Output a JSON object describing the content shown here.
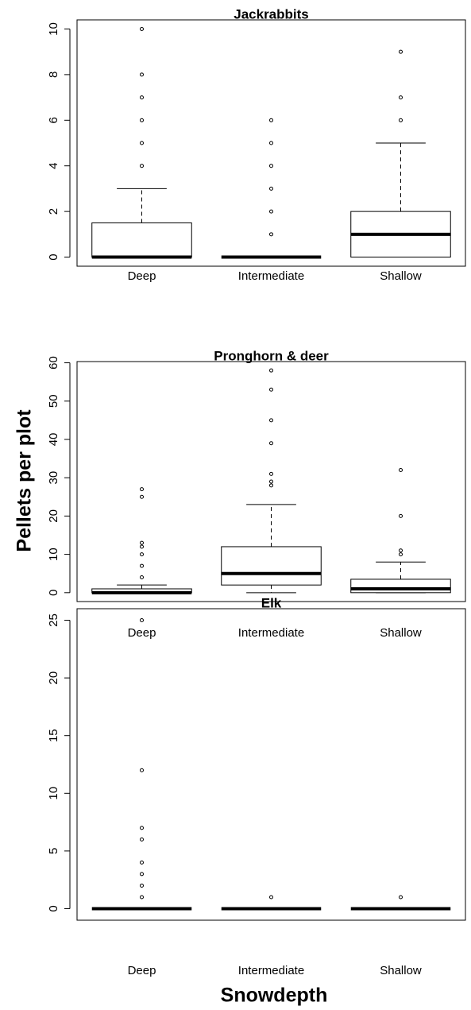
{
  "chart_data": [
    {
      "type": "box",
      "title": "Jackrabbits",
      "categories": [
        "Deep",
        "Intermediate",
        "Shallow"
      ],
      "boxes": [
        {
          "min": 0,
          "q1": 0,
          "median": 0,
          "q3": 1.5,
          "max": 3,
          "outliers": [
            4,
            5,
            6,
            7,
            8,
            10
          ]
        },
        {
          "min": 0,
          "q1": 0,
          "median": 0,
          "q3": 0,
          "max": 0,
          "outliers": [
            1,
            2,
            3,
            4,
            5,
            6
          ]
        },
        {
          "min": 0,
          "q1": 0,
          "median": 1,
          "q3": 2,
          "max": 5,
          "outliers": [
            6,
            7,
            9
          ]
        }
      ],
      "ylim": [
        -0.4,
        10.4
      ],
      "yticks": [
        0,
        2,
        4,
        6,
        8,
        10
      ]
    },
    {
      "type": "box",
      "title": "Pronghorn & deer",
      "ylabel": "Pellets per plot",
      "categories": [
        "Deep",
        "Intermediate",
        "Shallow"
      ],
      "boxes": [
        {
          "min": 0,
          "q1": 0,
          "median": 0,
          "q3": 1,
          "max": 2,
          "outliers": [
            4,
            7,
            10,
            12,
            13,
            25,
            27
          ]
        },
        {
          "min": 0,
          "q1": 2,
          "median": 5,
          "q3": 12,
          "max": 23,
          "outliers": [
            28,
            29,
            31,
            39,
            45,
            53,
            58
          ]
        },
        {
          "min": 0,
          "q1": 0,
          "median": 1,
          "q3": 3.5,
          "max": 8,
          "outliers": [
            10,
            11,
            20,
            32
          ]
        }
      ],
      "ylim": [
        -2.32,
        60.32
      ],
      "yticks": [
        0,
        10,
        20,
        30,
        40,
        50,
        60
      ]
    },
    {
      "type": "box",
      "title": "Elk",
      "xlabel": "Snowdepth",
      "categories": [
        "Deep",
        "Intermediate",
        "Shallow"
      ],
      "boxes": [
        {
          "min": 0,
          "q1": 0,
          "median": 0,
          "q3": 0,
          "max": 0,
          "outliers": [
            1,
            2,
            3,
            4,
            6,
            7,
            12,
            25
          ]
        },
        {
          "min": 0,
          "q1": 0,
          "median": 0,
          "q3": 0,
          "max": 0,
          "outliers": [
            1
          ]
        },
        {
          "min": 0,
          "q1": 0,
          "median": 0,
          "q3": 0,
          "max": 0,
          "outliers": [
            1
          ]
        }
      ],
      "ylim": [
        -1,
        26
      ],
      "yticks": [
        0,
        5,
        10,
        15,
        20,
        25
      ]
    }
  ]
}
